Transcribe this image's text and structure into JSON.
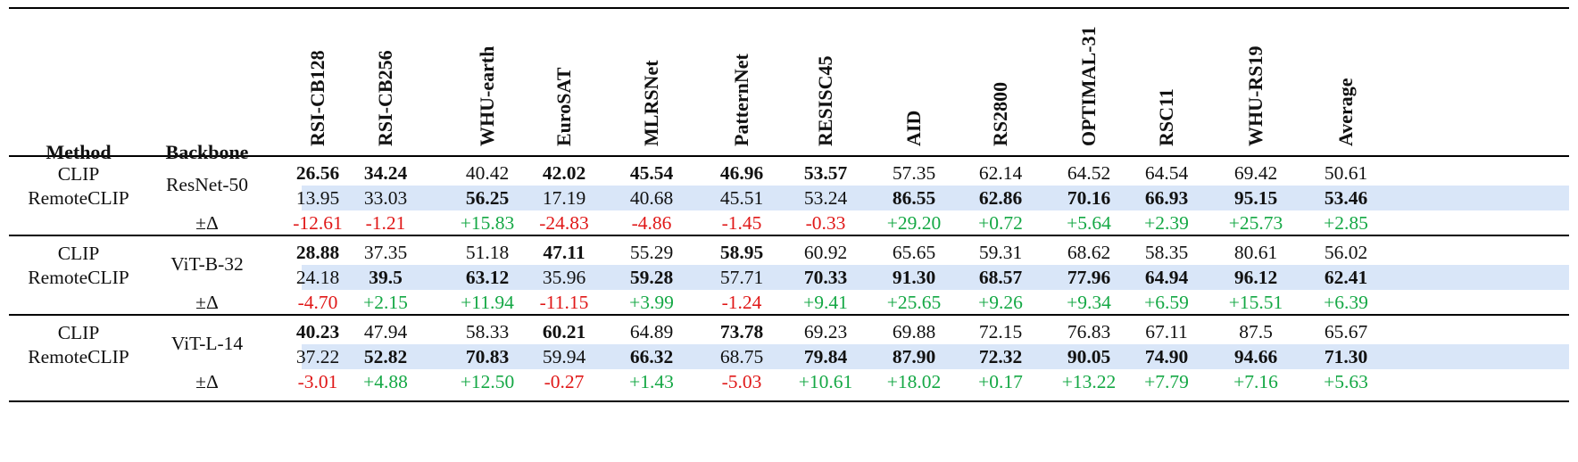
{
  "headers": {
    "method": "Method",
    "backbone": "Backbone",
    "columns": [
      "RSI-CB128",
      "RSI-CB256",
      "WHU-earth",
      "EuroSAT",
      "MLRSNet",
      "PatternNet",
      "RESISC45",
      "AID",
      "RS2800",
      "OPTIMAL-31",
      "RSC11",
      "WHU-RS19",
      "Average"
    ]
  },
  "groups": [
    {
      "backbone": "ResNet-50",
      "clip_label": "CLIP",
      "remote_label": "RemoteCLIP",
      "delta_label": "±Δ",
      "clip": [
        "26.56",
        "34.24",
        "40.42",
        "42.02",
        "45.54",
        "46.96",
        "53.57",
        "57.35",
        "62.14",
        "64.52",
        "64.54",
        "69.42",
        "50.61"
      ],
      "clip_bold": [
        true,
        true,
        false,
        true,
        true,
        true,
        true,
        false,
        false,
        false,
        false,
        false,
        false
      ],
      "remote": [
        "13.95",
        "33.03",
        "56.25",
        "17.19",
        "40.68",
        "45.51",
        "53.24",
        "86.55",
        "62.86",
        "70.16",
        "66.93",
        "95.15",
        "53.46"
      ],
      "remote_bold": [
        false,
        false,
        true,
        false,
        false,
        false,
        false,
        true,
        true,
        true,
        true,
        true,
        true
      ],
      "delta": [
        "-12.61",
        "-1.21",
        "+15.83",
        "-24.83",
        "-4.86",
        "-1.45",
        "-0.33",
        "+29.20",
        "+0.72",
        "+5.64",
        "+2.39",
        "+25.73",
        "+2.85"
      ]
    },
    {
      "backbone": "ViT-B-32",
      "clip_label": "CLIP",
      "remote_label": "RemoteCLIP",
      "delta_label": "±Δ",
      "clip": [
        "28.88",
        "37.35",
        "51.18",
        "47.11",
        "55.29",
        "58.95",
        "60.92",
        "65.65",
        "59.31",
        "68.62",
        "58.35",
        "80.61",
        "56.02"
      ],
      "clip_bold": [
        true,
        false,
        false,
        true,
        false,
        true,
        false,
        false,
        false,
        false,
        false,
        false,
        false
      ],
      "remote": [
        "24.18",
        "39.5",
        "63.12",
        "35.96",
        "59.28",
        "57.71",
        "70.33",
        "91.30",
        "68.57",
        "77.96",
        "64.94",
        "96.12",
        "62.41"
      ],
      "remote_bold": [
        false,
        true,
        true,
        false,
        true,
        false,
        true,
        true,
        true,
        true,
        true,
        true,
        true
      ],
      "delta": [
        "-4.70",
        "+2.15",
        "+11.94",
        "-11.15",
        "+3.99",
        "-1.24",
        "+9.41",
        "+25.65",
        "+9.26",
        "+9.34",
        "+6.59",
        "+15.51",
        "+6.39"
      ]
    },
    {
      "backbone": "ViT-L-14",
      "clip_label": "CLIP",
      "remote_label": "RemoteCLIP",
      "delta_label": "±Δ",
      "clip": [
        "40.23",
        "47.94",
        "58.33",
        "60.21",
        "64.89",
        "73.78",
        "69.23",
        "69.88",
        "72.15",
        "76.83",
        "67.11",
        "87.5",
        "65.67"
      ],
      "clip_bold": [
        true,
        false,
        false,
        true,
        false,
        true,
        false,
        false,
        false,
        false,
        false,
        false,
        false
      ],
      "remote": [
        "37.22",
        "52.82",
        "70.83",
        "59.94",
        "66.32",
        "68.75",
        "79.84",
        "87.90",
        "72.32",
        "90.05",
        "74.90",
        "94.66",
        "71.30"
      ],
      "remote_bold": [
        false,
        true,
        true,
        false,
        true,
        false,
        true,
        true,
        true,
        true,
        true,
        true,
        true
      ],
      "delta": [
        "-3.01",
        "+4.88",
        "+12.50",
        "-0.27",
        "+1.43",
        "-5.03",
        "+10.61",
        "+18.02",
        "+0.17",
        "+13.22",
        "+7.79",
        "+7.16",
        "+5.63"
      ]
    }
  ],
  "colors": {
    "highlight": "#d9e6f8",
    "negative": "#e01818",
    "positive": "#15a845"
  }
}
